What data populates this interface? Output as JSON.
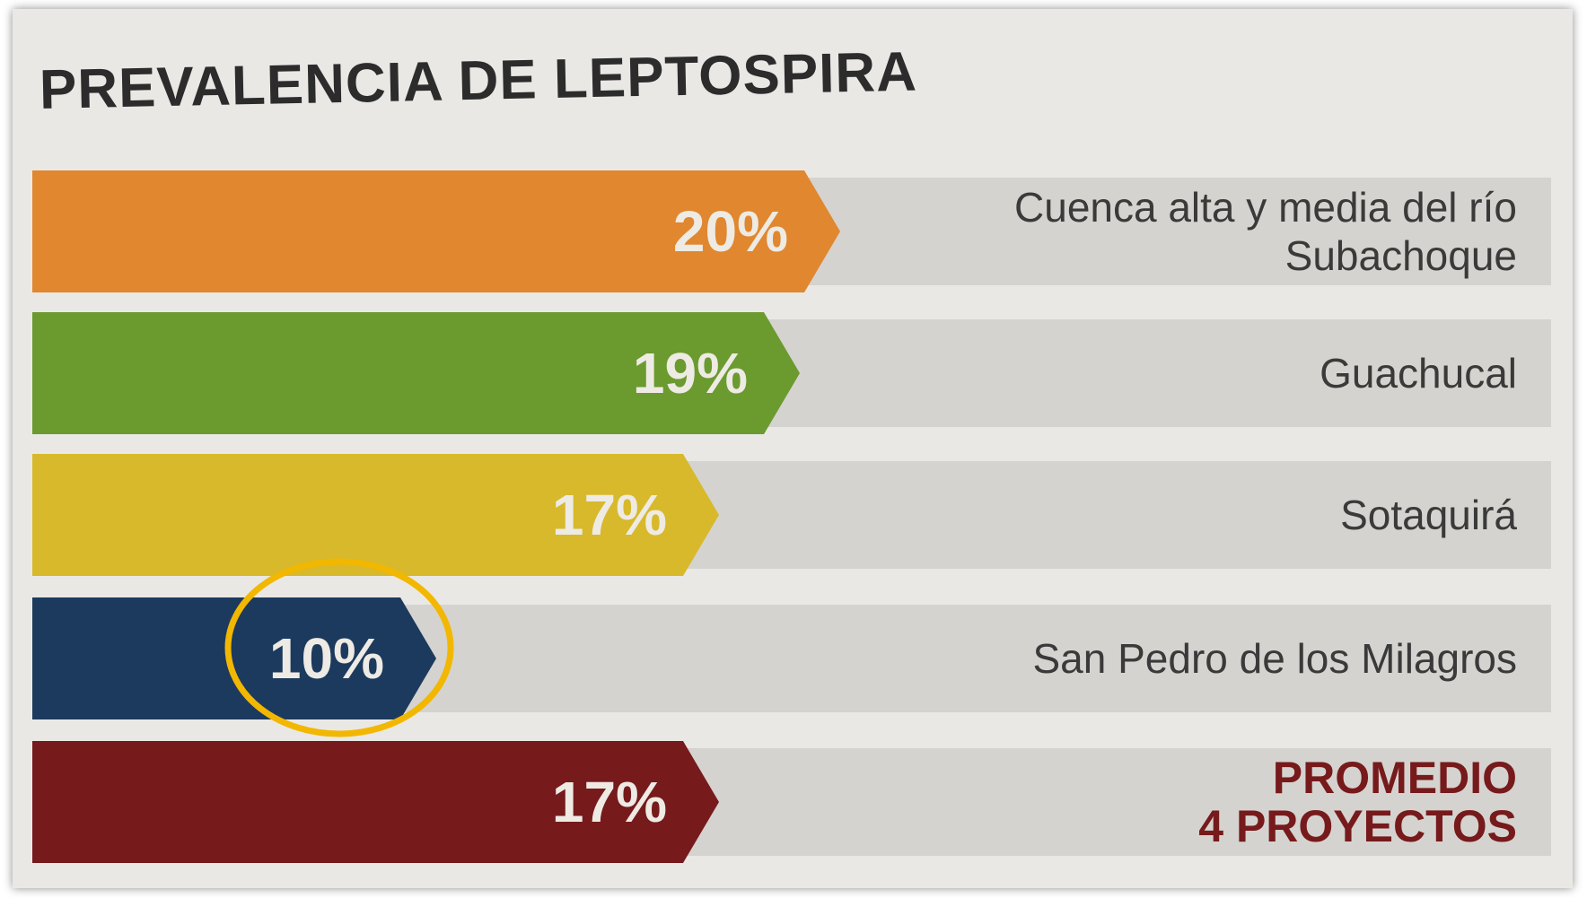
{
  "chart_data": {
    "type": "bar",
    "title": "PREVALENCIA DE LEPTOSPIRA",
    "categories": [
      "Cuenca alta y media del río\nSubachoque",
      "Guachucal",
      "Sotaquirá",
      "San Pedro de los Milagros",
      "PROMEDIO\n4 PROYECTOS"
    ],
    "values": [
      20,
      19,
      17,
      10,
      17
    ],
    "value_labels": [
      "20%",
      "19%",
      "17%",
      "10%",
      "17%"
    ],
    "colors": [
      "#e0872f",
      "#6b9a2f",
      "#d7b92b",
      "#1c3a5d",
      "#761a1c"
    ],
    "label_colors": [
      "#3a3a3a",
      "#3a3a3a",
      "#3a3a3a",
      "#3a3a3a",
      "#761a1c"
    ]
  }
}
